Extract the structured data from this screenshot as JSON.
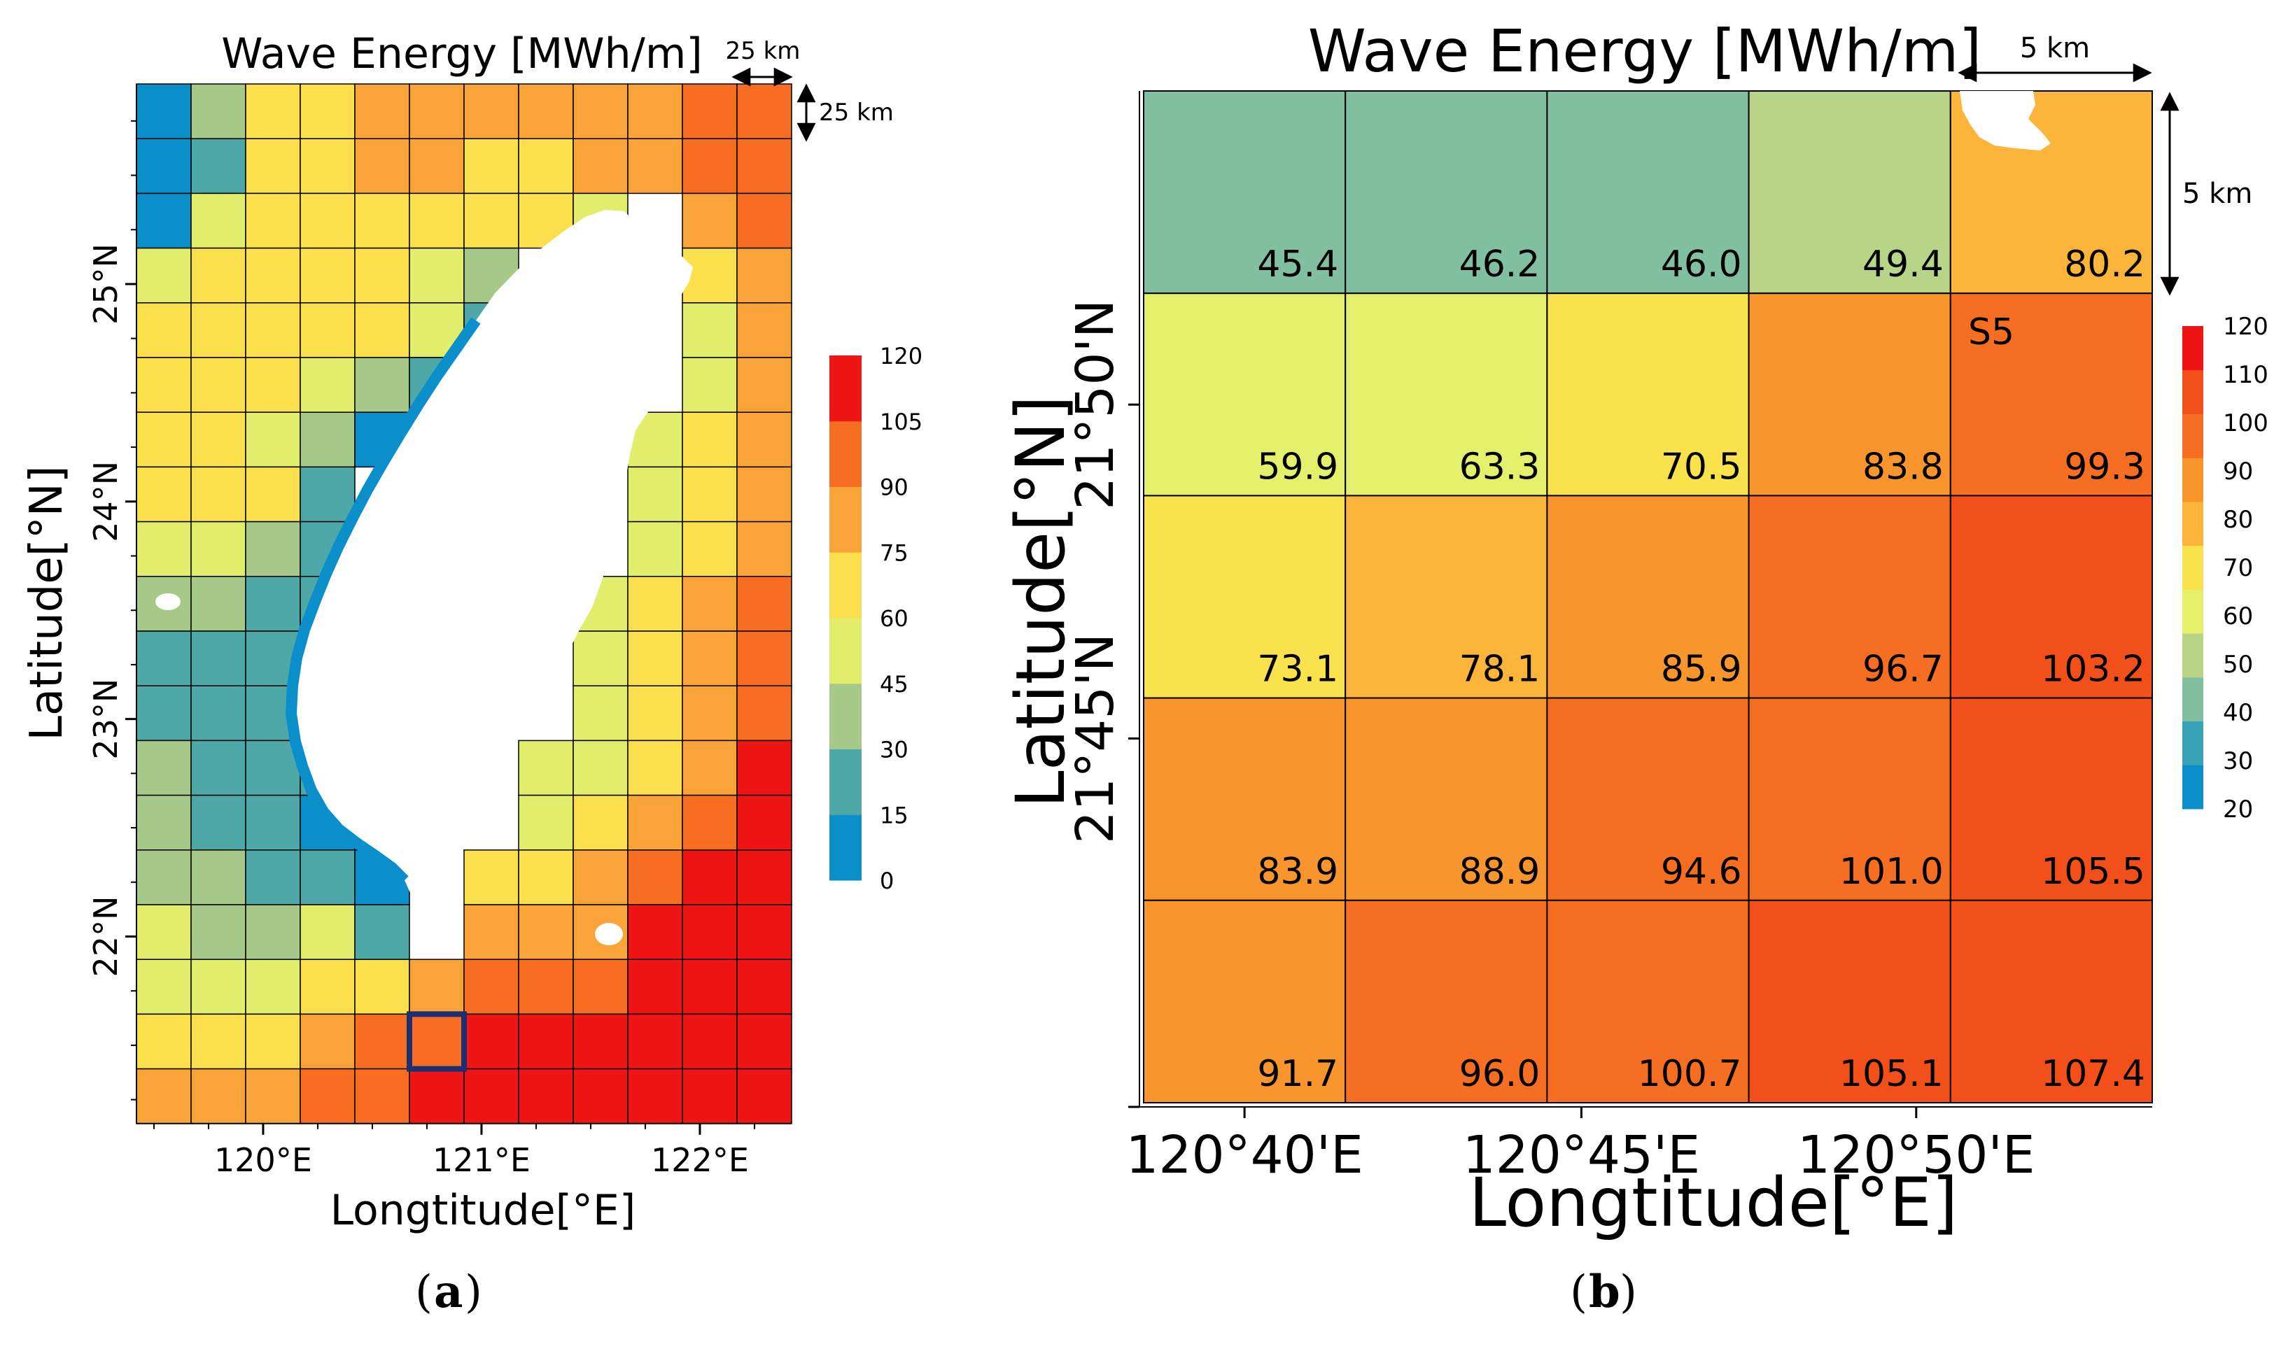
{
  "colors": {
    "grid_a": [
      "#0a8fcb",
      "#4ea8a8",
      "#a6c98a",
      "#e3ed6c",
      "#fbdf4c",
      "#faa338",
      "#f76e22",
      "#ef1515"
    ],
    "grid_b": [
      "#0a8fcb",
      "#37a2b8",
      "#80bfa0",
      "#b8d486",
      "#e4ef6b",
      "#fae24d",
      "#fcb43a",
      "#f8952c",
      "#f66e22",
      "#f34f1b",
      "#ef1515"
    ],
    "selection_box": "#1c2f73",
    "land": "#ffffff"
  },
  "chart_data": [
    {
      "type": "heatmap",
      "panel": "a",
      "title": "Wave Energy [MWh/m]",
      "xlabel": "Longtitude[°E]",
      "ylabel": "Latitude[°N]",
      "xticks": [
        {
          "label": "120°E",
          "value": 120
        },
        {
          "label": "121°E",
          "value": 121
        },
        {
          "label": "122°E",
          "value": 122
        }
      ],
      "yticks": [
        {
          "label": "22°N",
          "value": 22
        },
        {
          "label": "23°N",
          "value": 23
        },
        {
          "label": "24°N",
          "value": 24
        },
        {
          "label": "25°N",
          "value": 25
        }
      ],
      "xlim": [
        119.42,
        122.42
      ],
      "ylim": [
        21.14,
        25.92
      ],
      "scale_x": "25 km",
      "scale_y": "25 km",
      "colorbar": {
        "ticks": [
          "120",
          "105",
          "90",
          "75",
          "60",
          "45",
          "30",
          "15",
          "0"
        ],
        "bins": [
          0,
          15,
          30,
          45,
          60,
          75,
          90,
          105,
          120
        ]
      },
      "grid_note": "12 columns x 19 rows; values are color-class indices 0-7 (0: 0-15, 1: 15-30, 2: 30-45, 3: 45-60, 4: 60-75, 5: 75-90, 6: 90-105, 7: 105-120); -1 = land",
      "classes": [
        [
          0,
          2,
          4,
          4,
          5,
          5,
          5,
          5,
          5,
          5,
          6,
          6
        ],
        [
          0,
          1,
          4,
          4,
          5,
          5,
          4,
          4,
          5,
          5,
          6,
          6
        ],
        [
          0,
          3,
          4,
          4,
          4,
          4,
          4,
          4,
          3,
          -1,
          5,
          6
        ],
        [
          3,
          4,
          4,
          4,
          4,
          3,
          2,
          -1,
          -1,
          -1,
          4,
          5
        ],
        [
          4,
          4,
          4,
          4,
          4,
          3,
          1,
          -1,
          -1,
          -1,
          3,
          5
        ],
        [
          4,
          4,
          4,
          3,
          2,
          1,
          -1,
          -1,
          -1,
          -1,
          3,
          5
        ],
        [
          4,
          4,
          3,
          2,
          0,
          -1,
          -1,
          -1,
          -1,
          3,
          4,
          5
        ],
        [
          4,
          4,
          4,
          1,
          -1,
          -1,
          -1,
          -1,
          -1,
          3,
          4,
          5
        ],
        [
          3,
          3,
          2,
          1,
          -1,
          -1,
          -1,
          -1,
          -1,
          3,
          4,
          5
        ],
        [
          2,
          2,
          1,
          1,
          -1,
          -1,
          -1,
          -1,
          3,
          4,
          5,
          6
        ],
        [
          1,
          1,
          1,
          1,
          -1,
          -1,
          -1,
          -1,
          3,
          4,
          5,
          6
        ],
        [
          1,
          1,
          1,
          0,
          -1,
          -1,
          -1,
          -1,
          3,
          4,
          5,
          6
        ],
        [
          2,
          1,
          1,
          1,
          0,
          -1,
          -1,
          3,
          3,
          4,
          5,
          7
        ],
        [
          2,
          1,
          1,
          0,
          0,
          -1,
          -1,
          3,
          4,
          5,
          6,
          7
        ],
        [
          2,
          2,
          1,
          1,
          0,
          -1,
          4,
          4,
          5,
          6,
          7,
          7
        ],
        [
          3,
          2,
          2,
          3,
          1,
          -1,
          5,
          5,
          5,
          7,
          7,
          7
        ],
        [
          3,
          3,
          3,
          4,
          4,
          5,
          6,
          6,
          6,
          7,
          7,
          7
        ],
        [
          4,
          4,
          4,
          5,
          6,
          6,
          7,
          7,
          7,
          7,
          7,
          7
        ],
        [
          5,
          5,
          5,
          6,
          6,
          7,
          7,
          7,
          7,
          7,
          7,
          7
        ]
      ],
      "highlight_cell": {
        "row": 17,
        "col": 5
      }
    },
    {
      "type": "heatmap",
      "panel": "b",
      "title": "Wave Energy [MWh/m]",
      "xlabel": "Longtitude[°E]",
      "ylabel": "Latitude[°N]",
      "xticks": [
        {
          "label": "120°40'E",
          "value": 0
        },
        {
          "label": "120°45'E",
          "value": 1
        },
        {
          "label": "120°50'E",
          "value": 2
        }
      ],
      "yticks": [
        {
          "label": "21°50'N",
          "value": 0
        },
        {
          "label": "21°45'N",
          "value": 1
        }
      ],
      "scale_x": "5 km",
      "scale_y": "5 km",
      "site_label": "S5",
      "colorbar": {
        "ticks": [
          "120",
          "110",
          "100",
          "90",
          "80",
          "70",
          "60",
          "50",
          "40",
          "30",
          "20"
        ],
        "min": 20,
        "max": 120
      },
      "values": [
        [
          45.4,
          46.2,
          46.0,
          49.4,
          80.2
        ],
        [
          59.9,
          63.3,
          70.5,
          83.8,
          99.3
        ],
        [
          73.1,
          78.1,
          85.9,
          96.7,
          103.2
        ],
        [
          83.9,
          88.9,
          94.6,
          101.0,
          105.5
        ],
        [
          91.7,
          96.0,
          100.7,
          105.1,
          107.4
        ]
      ],
      "value_labels": [
        [
          "45.4",
          "46.2",
          "46.0",
          "49.4",
          "80.2"
        ],
        [
          "59.9",
          "63.3",
          "70.5",
          "83.8",
          "99.3"
        ],
        [
          "73.1",
          "78.1",
          "85.9",
          "96.7",
          "103.2"
        ],
        [
          "83.9",
          "88.9",
          "94.6",
          "101.0",
          "105.5"
        ],
        [
          "91.7",
          "96.0",
          "100.7",
          "105.1",
          "107.4"
        ]
      ]
    }
  ],
  "panel_labels": {
    "a": {
      "open": "(",
      "letter": "a",
      "close": ")"
    },
    "b": {
      "open": "(",
      "letter": "b",
      "close": ")"
    }
  }
}
